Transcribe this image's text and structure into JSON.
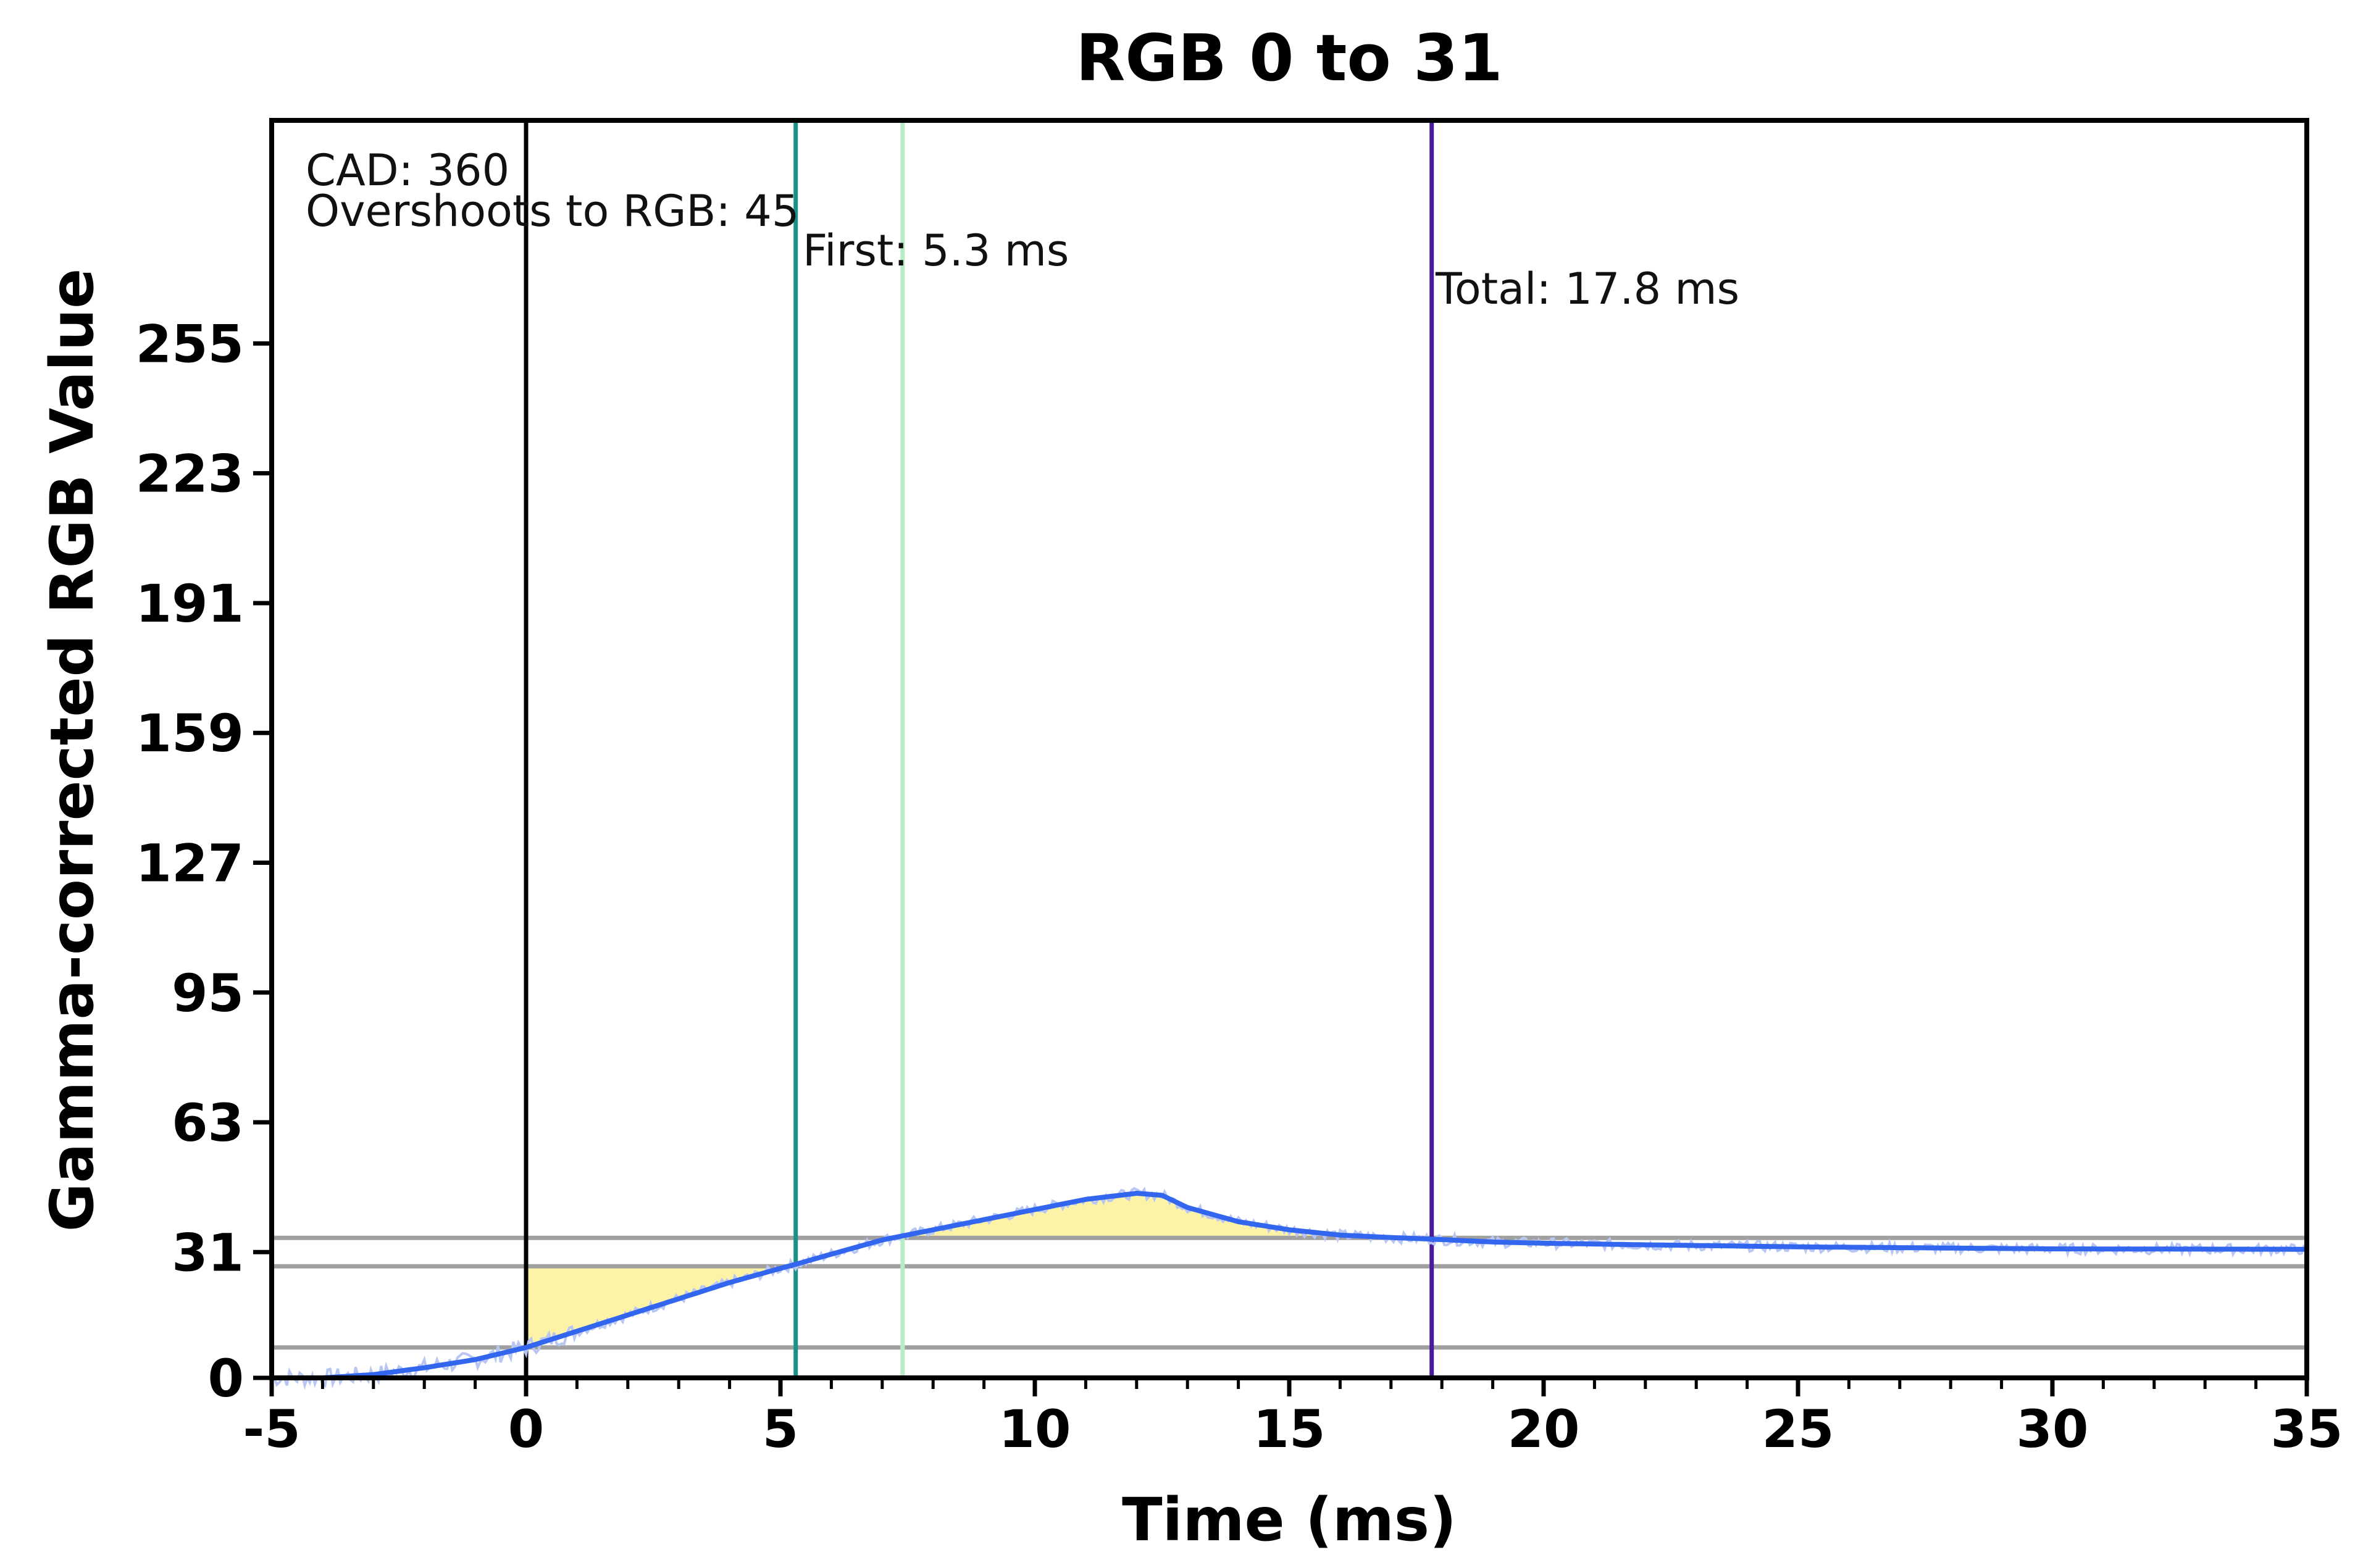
{
  "chart_data": {
    "type": "line",
    "title": "RGB 0 to 31",
    "xlabel": "Time (ms)",
    "ylabel": "Gamma-corrected RGB Value",
    "xlim": [
      -5,
      35
    ],
    "ylim": [
      0,
      310
    ],
    "xticks": [
      -5,
      0,
      5,
      10,
      15,
      20,
      25,
      30,
      35
    ],
    "yticks": [
      0,
      31,
      63,
      95,
      127,
      159,
      191,
      223,
      255
    ],
    "grid": false,
    "annotations": {
      "cad": "CAD: 360",
      "overshoot": "Overshoots to RGB: 45",
      "first": "First: 5.3 ms",
      "total": "Total: 17.8 ms"
    },
    "vlines": [
      {
        "x": 0,
        "color": "#000000"
      },
      {
        "x": 5.3,
        "color": "#1a9088"
      },
      {
        "x": 7.4,
        "color": "#b8ecc6"
      },
      {
        "x": 17.8,
        "color": "#4a1a9a"
      }
    ],
    "hlines": [
      {
        "y": 7.5,
        "color": "#a0a0a0"
      },
      {
        "y": 27.5,
        "color": "#a0a0a0"
      },
      {
        "y": 34.5,
        "color": "#a0a0a0"
      }
    ],
    "series": [
      {
        "color": "#3366ee",
        "raw_color": "#b7c6f2",
        "x": [
          -5,
          -4,
          -3,
          -2,
          -1,
          -0.5,
          0,
          1,
          2,
          3,
          4,
          5,
          5.3,
          6,
          7,
          8,
          9,
          10,
          11,
          12,
          12.5,
          13,
          14,
          15,
          16,
          17,
          17.8,
          19,
          20,
          22,
          25,
          30,
          35
        ],
        "y": [
          0,
          0,
          0.8,
          2.5,
          4.5,
          6,
          7.5,
          11.5,
          15.5,
          19.5,
          23.5,
          27,
          28,
          30.5,
          34,
          36.5,
          39,
          41.5,
          44,
          45.5,
          45,
          42,
          38.5,
          36.5,
          35.2,
          34.6,
          34.2,
          33.5,
          33.2,
          32.8,
          32.3,
          31.8,
          31.7
        ]
      }
    ],
    "fills": {
      "color": "#fdf3a6",
      "regions": [
        {
          "x_from": 0,
          "x_to": 5.3,
          "ref": 27.5
        },
        {
          "x_from": 7.4,
          "x_to": 17.8,
          "ref": 34.5
        }
      ]
    }
  }
}
